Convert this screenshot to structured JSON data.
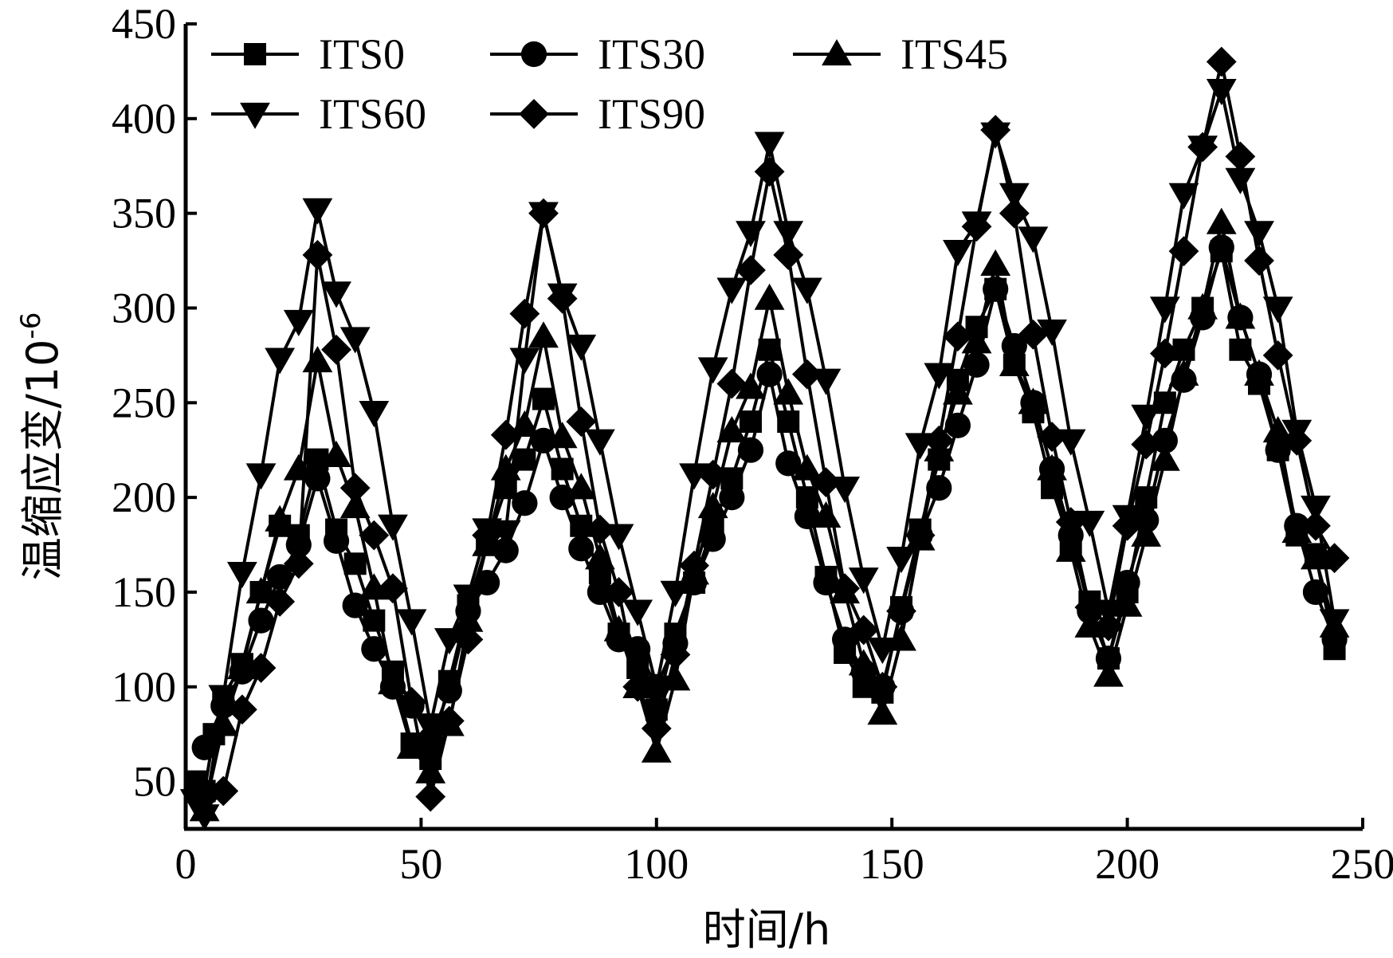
{
  "chart_data": {
    "type": "line",
    "title": "",
    "xlabel": "时间/h",
    "ylabel": "温缩应变/10",
    "ylabel_superscript": "-6",
    "xlim": [
      0,
      250
    ],
    "ylim": [
      25,
      450
    ],
    "xticks": [
      "0",
      "50",
      "100",
      "150",
      "200",
      "250"
    ],
    "yticks": [
      "50",
      "100",
      "150",
      "200",
      "250",
      "300",
      "350",
      "400",
      "450"
    ],
    "grid": false,
    "legend_position": "top-left",
    "series": [
      {
        "name": "ITS0",
        "marker": "square",
        "x": [
          2,
          4,
          6,
          8,
          12,
          16,
          20,
          24,
          28,
          32,
          36,
          40,
          44,
          48,
          52,
          56,
          60,
          64,
          68,
          72,
          76,
          80,
          84,
          88,
          92,
          96,
          100,
          104,
          108,
          112,
          116,
          120,
          124,
          128,
          132,
          136,
          140,
          144,
          148,
          152,
          156,
          160,
          164,
          168,
          172,
          176,
          180,
          184,
          188,
          192,
          196,
          200,
          204,
          208,
          212,
          216,
          220,
          224,
          228,
          232,
          236,
          240,
          244
        ],
        "y": [
          50,
          45,
          75,
          95,
          112,
          150,
          185,
          180,
          220,
          183,
          165,
          135,
          108,
          70,
          62,
          103,
          143,
          175,
          205,
          220,
          252,
          215,
          185,
          160,
          128,
          110,
          88,
          128,
          155,
          185,
          210,
          240,
          278,
          240,
          200,
          158,
          118,
          100,
          97,
          142,
          183,
          220,
          262,
          290,
          310,
          270,
          245,
          205,
          175,
          145,
          115,
          150,
          200,
          250,
          278,
          300,
          330,
          278,
          260,
          225,
          180,
          170,
          120
        ]
      },
      {
        "name": "ITS30",
        "marker": "circle",
        "x": [
          4,
          8,
          12,
          16,
          20,
          24,
          28,
          32,
          36,
          40,
          44,
          48,
          52,
          56,
          60,
          64,
          68,
          72,
          76,
          80,
          84,
          88,
          92,
          96,
          100,
          104,
          108,
          112,
          116,
          120,
          124,
          128,
          132,
          136,
          140,
          144,
          148,
          152,
          156,
          160,
          164,
          168,
          172,
          176,
          180,
          184,
          188,
          192,
          196,
          200,
          204,
          208,
          212,
          216,
          220,
          224,
          228,
          232,
          236,
          240,
          244
        ],
        "y": [
          68,
          90,
          108,
          135,
          158,
          175,
          210,
          177,
          143,
          120,
          100,
          90,
          72,
          98,
          140,
          155,
          172,
          197,
          230,
          200,
          173,
          150,
          125,
          120,
          100,
          123,
          155,
          178,
          200,
          225,
          265,
          218,
          190,
          155,
          125,
          108,
          100,
          140,
          180,
          205,
          238,
          270,
          310,
          280,
          250,
          215,
          180,
          140,
          115,
          155,
          188,
          230,
          262,
          295,
          332,
          295,
          265,
          225,
          185,
          150,
          125
        ]
      },
      {
        "name": "ITS45",
        "marker": "triangle-up",
        "x": [
          4,
          8,
          12,
          16,
          20,
          24,
          28,
          32,
          36,
          40,
          44,
          48,
          52,
          56,
          60,
          64,
          68,
          72,
          76,
          80,
          84,
          88,
          92,
          96,
          100,
          104,
          108,
          112,
          116,
          120,
          124,
          128,
          132,
          136,
          140,
          144,
          148,
          152,
          156,
          160,
          164,
          168,
          172,
          176,
          180,
          184,
          188,
          192,
          196,
          200,
          204,
          208,
          212,
          216,
          220,
          224,
          228,
          232,
          236,
          240,
          244
        ],
        "y": [
          35,
          80,
          110,
          150,
          188,
          215,
          272,
          222,
          195,
          152,
          102,
          68,
          55,
          80,
          135,
          175,
          215,
          238,
          285,
          232,
          205,
          168,
          130,
          100,
          66,
          104,
          160,
          195,
          235,
          258,
          305,
          255,
          215,
          190,
          150,
          112,
          86,
          125,
          178,
          225,
          255,
          282,
          323,
          270,
          250,
          215,
          172,
          132,
          106,
          143,
          180,
          220,
          265,
          300,
          345,
          295,
          265,
          235,
          182,
          168,
          132
        ]
      },
      {
        "name": "ITS60",
        "marker": "triangle-down",
        "x": [
          2,
          4,
          8,
          12,
          16,
          20,
          24,
          28,
          32,
          36,
          40,
          44,
          48,
          52,
          56,
          60,
          64,
          68,
          72,
          76,
          80,
          84,
          88,
          92,
          96,
          100,
          104,
          108,
          112,
          116,
          120,
          124,
          128,
          132,
          136,
          140,
          144,
          148,
          152,
          156,
          160,
          164,
          168,
          172,
          176,
          180,
          184,
          188,
          192,
          196,
          200,
          204,
          208,
          212,
          216,
          220,
          224,
          228,
          232,
          236,
          240,
          244
        ],
        "y": [
          40,
          32,
          95,
          160,
          212,
          273,
          293,
          352,
          308,
          284,
          245,
          185,
          135,
          80,
          125,
          148,
          183,
          182,
          273,
          350,
          307,
          280,
          230,
          180,
          140,
          100,
          150,
          212,
          268,
          310,
          340,
          387,
          340,
          310,
          262,
          205,
          157,
          120,
          168,
          228,
          265,
          330,
          345,
          392,
          360,
          337,
          288,
          230,
          187,
          140,
          190,
          243,
          300,
          360,
          385,
          415,
          368,
          340,
          300,
          235,
          195,
          135
        ]
      },
      {
        "name": "ITS90",
        "marker": "diamond",
        "x": [
          4,
          8,
          12,
          16,
          20,
          24,
          28,
          32,
          36,
          40,
          44,
          48,
          52,
          56,
          60,
          64,
          68,
          72,
          76,
          80,
          84,
          88,
          92,
          96,
          100,
          104,
          108,
          112,
          116,
          120,
          124,
          128,
          132,
          136,
          140,
          144,
          148,
          152,
          156,
          160,
          164,
          168,
          172,
          176,
          180,
          184,
          188,
          192,
          196,
          200,
          204,
          208,
          212,
          216,
          220,
          224,
          228,
          232,
          236,
          240,
          244
        ],
        "y": [
          42,
          45,
          88,
          110,
          145,
          165,
          328,
          278,
          205,
          180,
          152,
          92,
          42,
          82,
          125,
          180,
          233,
          297,
          350,
          305,
          240,
          183,
          150,
          100,
          78,
          117,
          164,
          212,
          260,
          320,
          372,
          328,
          265,
          208,
          152,
          130,
          100,
          140,
          180,
          230,
          285,
          343,
          394,
          350,
          286,
          232,
          187,
          142,
          132,
          185,
          228,
          276,
          330,
          385,
          430,
          380,
          325,
          275,
          230,
          185,
          168
        ]
      }
    ]
  }
}
